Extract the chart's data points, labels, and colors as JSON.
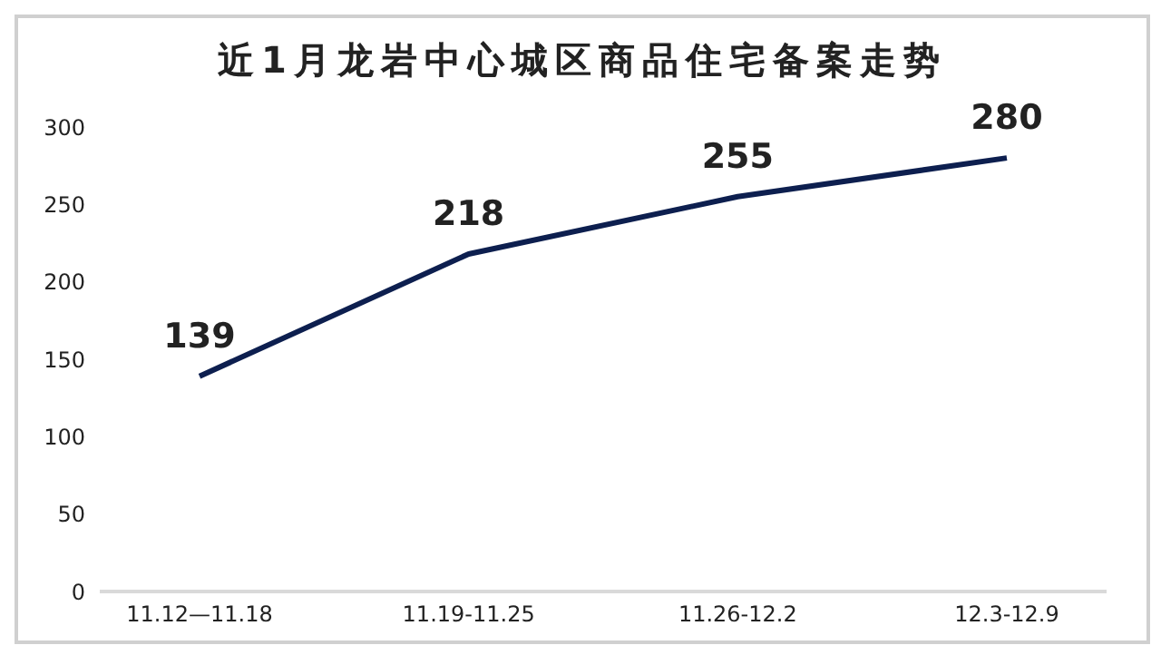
{
  "chart_data": {
    "type": "line",
    "title": "近1月龙岩中心城区商品住宅备案走势",
    "categories": [
      "11.12—11.18",
      "11.19-11.25",
      "11.26-12.2",
      "12.3-12.9"
    ],
    "series": [
      {
        "color": "#0d1f4f",
        "values": [
          139,
          218,
          255,
          280
        ]
      }
    ],
    "ylim": [
      0,
      300
    ],
    "yticks": [
      0,
      50,
      100,
      150,
      200,
      250,
      300
    ],
    "grid": false,
    "data_labels": true,
    "marker": "none",
    "line_style": "solid"
  }
}
